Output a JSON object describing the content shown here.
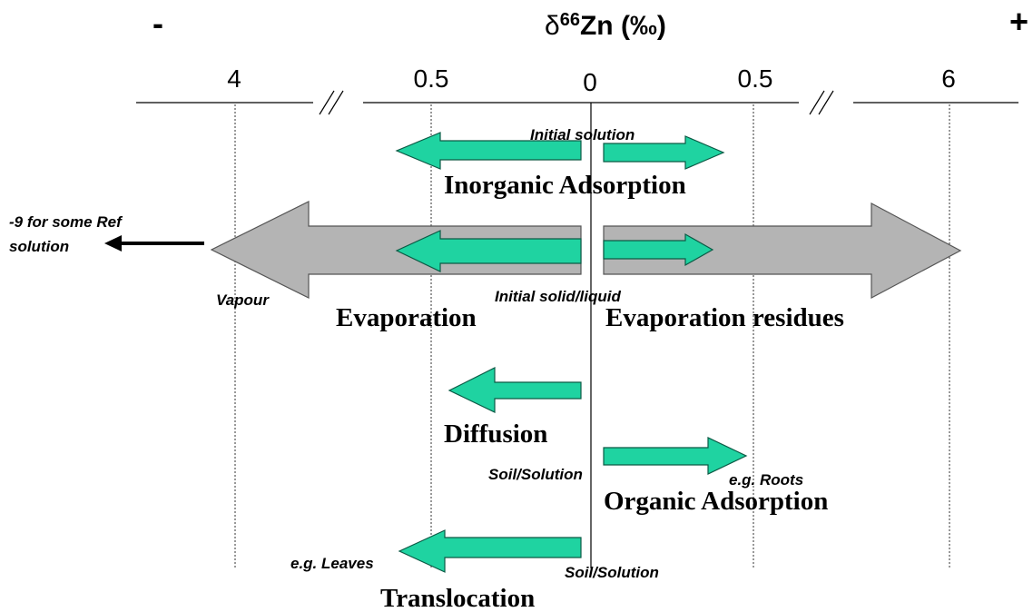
{
  "header": {
    "minus": "-",
    "plus": "+",
    "symbol": "δ",
    "mass": "66",
    "element": "Zn (‰)"
  },
  "axis": {
    "ticks": [
      "4",
      "0.5",
      "0",
      "0.5",
      "6"
    ]
  },
  "processes": {
    "inorganic_adsorption": {
      "label": "Inorganic Adsorption",
      "origin": "Initial solution"
    },
    "evaporation": {
      "left_label": "Evaporation",
      "right_label": "Evaporation residues",
      "origin": "Initial solid/liquid",
      "vapour": "Vapour",
      "note_line1": "-9 for some Ref",
      "note_line2": "solution"
    },
    "diffusion": {
      "label": "Diffusion"
    },
    "organic_adsorption": {
      "label": "Organic Adsorption",
      "origin": "Soil/Solution",
      "target": "e.g. Roots"
    },
    "translocation": {
      "label": "Translocation",
      "origin": "Soil/Solution",
      "target": "e.g. Leaves"
    }
  }
}
